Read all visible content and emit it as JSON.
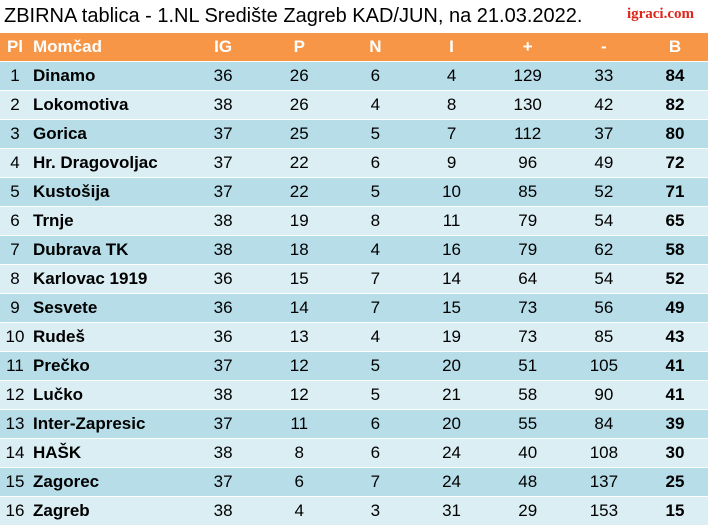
{
  "title": "ZBIRNA tablica - 1.NL Središte Zagreb KAD/JUN, na 21.03.2022.",
  "logo": "igraci.com",
  "colors": {
    "header_bg": "#f79646",
    "row_odd": "#b6dde8",
    "row_even": "#dbeef3",
    "logo": "#e0251b"
  },
  "table": {
    "headers": [
      "Pl",
      "Momčad",
      "IG",
      "P",
      "N",
      "I",
      "+",
      "-",
      "B"
    ],
    "rows": [
      [
        "1",
        "Dinamo",
        "36",
        "26",
        "6",
        "4",
        "129",
        "33",
        "84"
      ],
      [
        "2",
        "Lokomotiva",
        "38",
        "26",
        "4",
        "8",
        "130",
        "42",
        "82"
      ],
      [
        "3",
        "Gorica",
        "37",
        "25",
        "5",
        "7",
        "112",
        "37",
        "80"
      ],
      [
        "4",
        "Hr. Dragovoljac",
        "37",
        "22",
        "6",
        "9",
        "96",
        "49",
        "72"
      ],
      [
        "5",
        "Kustošija",
        "37",
        "22",
        "5",
        "10",
        "85",
        "52",
        "71"
      ],
      [
        "6",
        "Trnje",
        "38",
        "19",
        "8",
        "11",
        "79",
        "54",
        "65"
      ],
      [
        "7",
        "Dubrava TK",
        "38",
        "18",
        "4",
        "16",
        "79",
        "62",
        "58"
      ],
      [
        "8",
        "Karlovac 1919",
        "36",
        "15",
        "7",
        "14",
        "64",
        "54",
        "52"
      ],
      [
        "9",
        "Sesvete",
        "36",
        "14",
        "7",
        "15",
        "73",
        "56",
        "49"
      ],
      [
        "10",
        "Rudeš",
        "36",
        "13",
        "4",
        "19",
        "73",
        "85",
        "43"
      ],
      [
        "11",
        "Prečko",
        "37",
        "12",
        "5",
        "20",
        "51",
        "105",
        "41"
      ],
      [
        "12",
        "Lučko",
        "38",
        "12",
        "5",
        "21",
        "58",
        "90",
        "41"
      ],
      [
        "13",
        "Inter-Zapresic",
        "37",
        "11",
        "6",
        "20",
        "55",
        "84",
        "39"
      ],
      [
        "14",
        "HAŠK",
        "38",
        "8",
        "6",
        "24",
        "40",
        "108",
        "30"
      ],
      [
        "15",
        "Zagorec",
        "37",
        "6",
        "7",
        "24",
        "48",
        "137",
        "25"
      ],
      [
        "16",
        "Zagreb",
        "38",
        "4",
        "3",
        "31",
        "29",
        "153",
        "15"
      ]
    ]
  }
}
